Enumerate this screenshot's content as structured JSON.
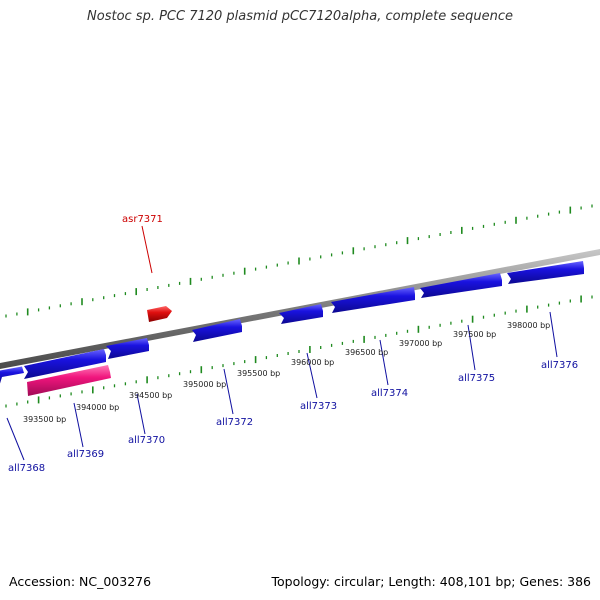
{
  "title": "Nostoc sp. PCC 7120 plasmid pCC7120alpha, complete sequence",
  "footer": {
    "accession": "Accession: NC_003276",
    "stats": "Topology: circular; Length: 408,101 bp; Genes: 386"
  },
  "colors": {
    "forward_gene": "#1a12e0",
    "reverse_gene": "#1a12e0",
    "highlight_gene": "#f0157d",
    "rna_gene": "#e01010",
    "backbone": "#888888",
    "ticks": "#1f8a1f",
    "label_blue": "#1010a0",
    "label_red": "#cc0000"
  },
  "position_labels": [
    "393500 bp",
    "394000 bp",
    "394500 bp",
    "395000 bp",
    "395500 bp",
    "396000 bp",
    "396500 bp",
    "397000 bp",
    "397500 bp",
    "398000 bp"
  ],
  "genes": [
    {
      "name": "all7368",
      "color": "blue"
    },
    {
      "name": "all7369",
      "color": "pink"
    },
    {
      "name": "all7370",
      "color": "blue"
    },
    {
      "name": "asr7371",
      "color": "red"
    },
    {
      "name": "all7372",
      "color": "blue"
    },
    {
      "name": "all7373",
      "color": "blue"
    },
    {
      "name": "all7374",
      "color": "blue"
    },
    {
      "name": "all7375",
      "color": "blue"
    },
    {
      "name": "all7376",
      "color": "blue"
    }
  ]
}
